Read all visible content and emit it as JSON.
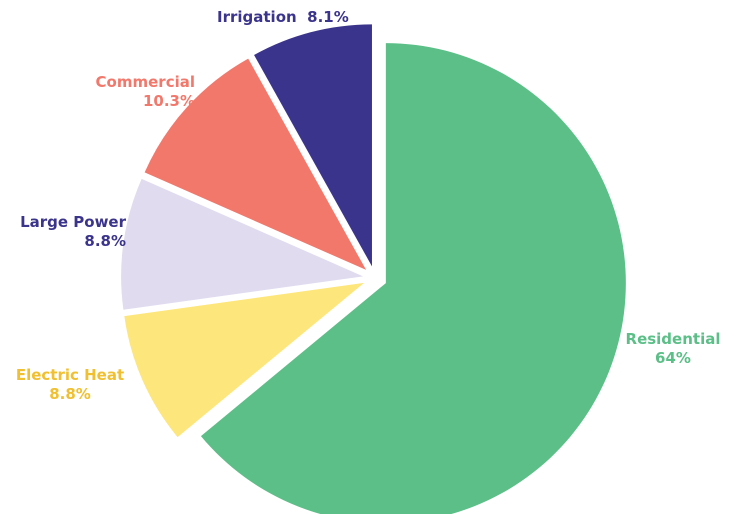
{
  "chart_data": {
    "type": "pie",
    "title": "",
    "slices": [
      {
        "label": "Residential",
        "value_text": "64%",
        "value": 64,
        "color": "#5bbf87"
      },
      {
        "label": "Electric Heat",
        "value_text": "8.8%",
        "value": 8.8,
        "color": "#fde67b"
      },
      {
        "label": "Large Power",
        "value_text": "8.8%",
        "value": 8.8,
        "color": "#e0dbee"
      },
      {
        "label": "Commercial",
        "value_text": "10.3%",
        "value": 10.3,
        "color": "#f2786b"
      },
      {
        "label": "Irrigation",
        "value_text": "8.1%",
        "value": 8.1,
        "color": "#3b348c"
      }
    ],
    "label_colors": {
      "Residential": "#5bbf87",
      "Electric Heat": "#f0c030",
      "Large Power": "#3b348c",
      "Commercial": "#f2786b",
      "Irrigation": "#3b348c"
    }
  }
}
